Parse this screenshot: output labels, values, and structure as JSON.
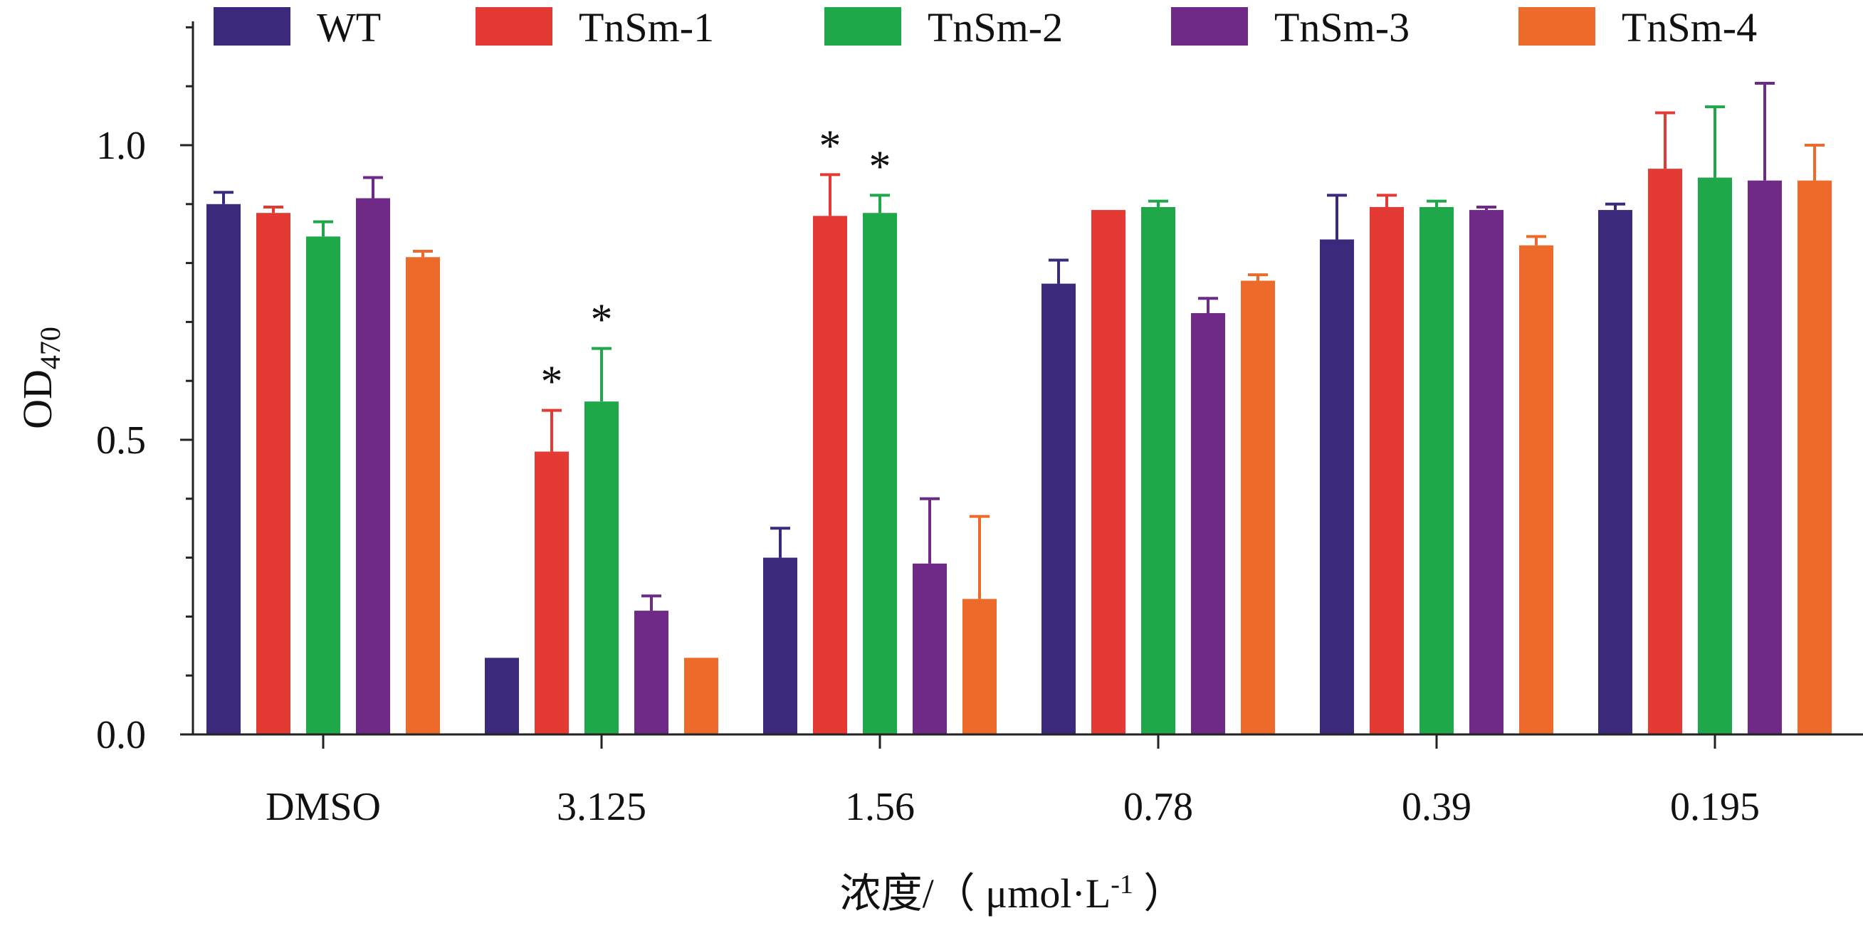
{
  "chart_data": {
    "type": "bar",
    "categories": [
      "DMSO",
      "3.125",
      "1.56",
      "0.78",
      "0.39",
      "0.195"
    ],
    "series": [
      {
        "name": "WT",
        "color": "#3b2a7c",
        "values": [
          0.9,
          0.13,
          0.3,
          0.765,
          0.84,
          0.89
        ],
        "errors": [
          0.02,
          0.0,
          0.05,
          0.04,
          0.075,
          0.01
        ]
      },
      {
        "name": "TnSm-1",
        "color": "#e33a33",
        "values": [
          0.885,
          0.48,
          0.88,
          0.89,
          0.895,
          0.96
        ],
        "errors": [
          0.01,
          0.07,
          0.07,
          0.0,
          0.02,
          0.095
        ]
      },
      {
        "name": "TnSm-2",
        "color": "#1ea84a",
        "values": [
          0.845,
          0.565,
          0.885,
          0.895,
          0.895,
          0.945
        ],
        "errors": [
          0.025,
          0.09,
          0.03,
          0.01,
          0.01,
          0.12
        ]
      },
      {
        "name": "TnSm-3",
        "color": "#6e2a86",
        "values": [
          0.91,
          0.21,
          0.29,
          0.715,
          0.89,
          0.94
        ],
        "errors": [
          0.035,
          0.025,
          0.11,
          0.025,
          0.005,
          0.165
        ]
      },
      {
        "name": "TnSm-4",
        "color": "#ec6a2a",
        "values": [
          0.81,
          0.13,
          0.23,
          0.77,
          0.83,
          0.94
        ],
        "errors": [
          0.01,
          0.0,
          0.14,
          0.01,
          0.015,
          0.06
        ]
      }
    ],
    "significance": [
      {
        "category": "3.125",
        "series": "TnSm-1",
        "mark": "*"
      },
      {
        "category": "3.125",
        "series": "TnSm-2",
        "mark": "*"
      },
      {
        "category": "1.56",
        "series": "TnSm-1",
        "mark": "*"
      },
      {
        "category": "1.56",
        "series": "TnSm-2",
        "mark": "*"
      }
    ],
    "yticks": [
      "0.0",
      "0.5",
      "1.0"
    ],
    "ylim": [
      0,
      1.2
    ],
    "ylabel": {
      "main": "OD",
      "sub": "470"
    },
    "xlabel": {
      "main": "浓度/（ μmol·L",
      "sup": "-1",
      "end": " ）"
    },
    "legend_position": "top",
    "grid": false
  }
}
